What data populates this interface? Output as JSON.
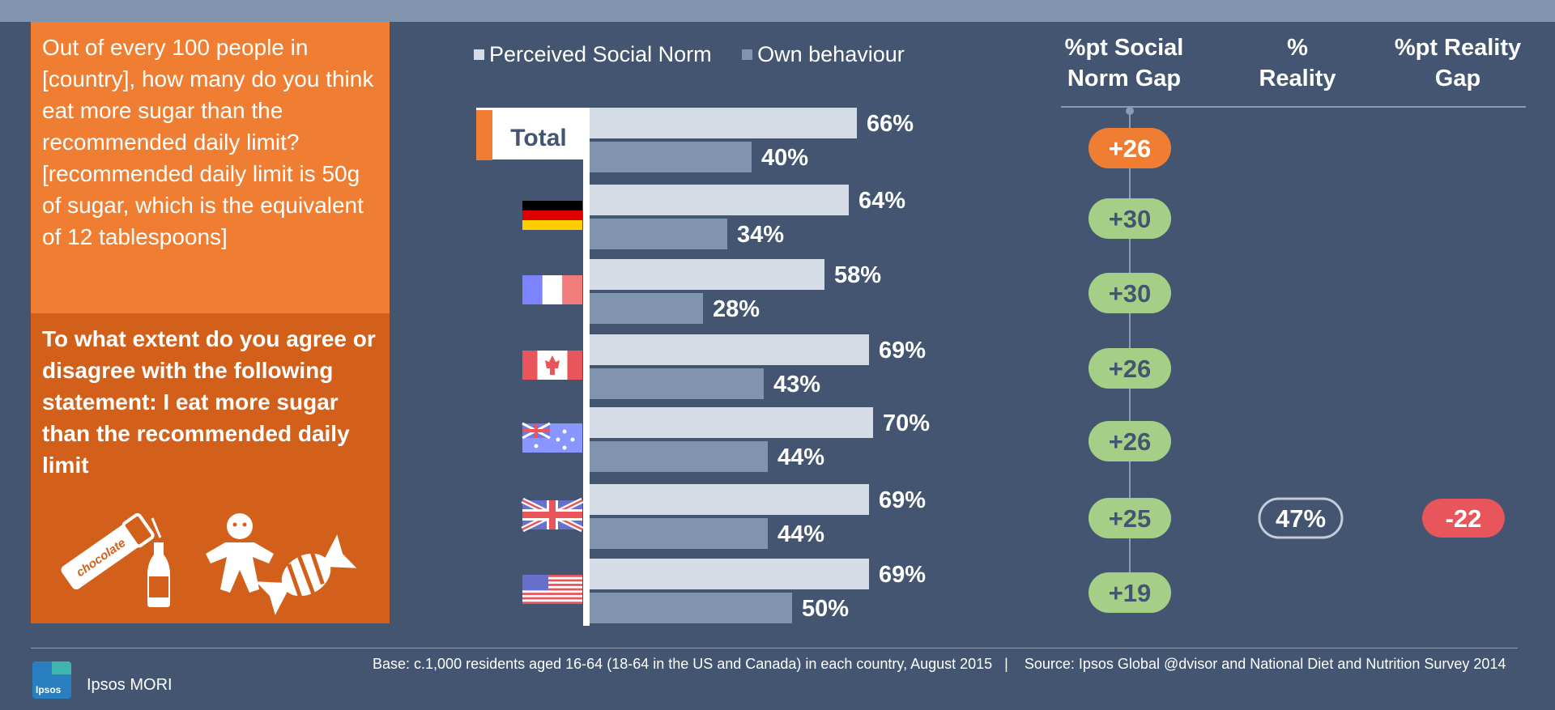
{
  "question1": "Out of every 100 people in [country], how many do you think eat more sugar than the recommended daily limit? [recommended daily limit is 50g of sugar, which is the equivalent of 12 tablespoons]",
  "question2": "To what extent do you agree or disagree with the following statement: I eat more sugar than the recommended daily limit",
  "icon_text": "chocolate",
  "legend": {
    "perceived": "Perceived Social Norm",
    "own": "Own behaviour"
  },
  "headers": {
    "gap_line1": "%pt Social",
    "gap_line2": "Norm Gap",
    "reality_line1": "%",
    "reality_line2": "Reality",
    "reality_gap_line1": "%pt Reality",
    "reality_gap_line2": "Gap"
  },
  "footer": {
    "base": "Base: c.1,000 residents aged 16-64 (18-64 in the US and Canada) in each country, August 2015   |    Source: Ipsos Global @dvisor and National Diet and Nutrition Survey 2014"
  },
  "brand": {
    "name": "Ipsos MORI",
    "logo_text": "Ipsos"
  },
  "colors": {
    "perceived": "#d6dce6",
    "own": "#8194ad",
    "background": "#435570",
    "gap_total": "#ef7e32",
    "gap_country": "#a5cf86",
    "reality_gap": "#e8555a"
  },
  "chart_data": {
    "type": "bar",
    "xlim": [
      0,
      100
    ],
    "categories": [
      "Total",
      "Germany",
      "France",
      "Canada",
      "Australia",
      "Great Britain",
      "USA"
    ],
    "series": [
      {
        "name": "Perceived Social Norm",
        "values": [
          66,
          64,
          58,
          69,
          70,
          69,
          69
        ]
      },
      {
        "name": "Own behaviour",
        "values": [
          40,
          34,
          28,
          43,
          44,
          44,
          50
        ]
      }
    ],
    "total_label": "Total",
    "gap_labels": [
      "+26",
      "+30",
      "+30",
      "+26",
      "+26",
      "+25",
      "+19"
    ],
    "reality": [
      null,
      null,
      null,
      null,
      null,
      "47%",
      null
    ],
    "reality_gap": [
      null,
      null,
      null,
      null,
      null,
      "-22",
      null
    ]
  }
}
